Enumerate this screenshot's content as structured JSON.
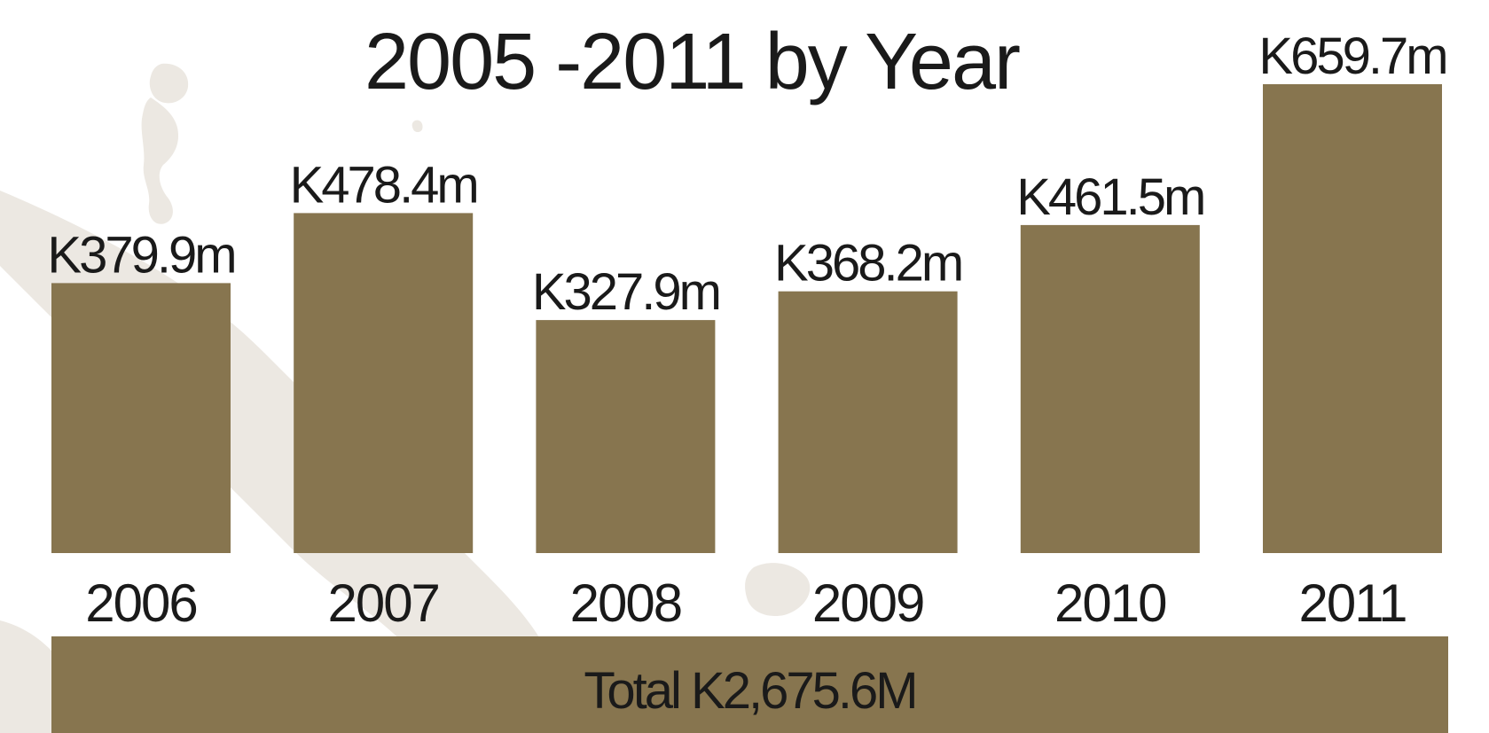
{
  "colors": {
    "bar": "#87754f",
    "text": "#1a1a1a",
    "map": "#ece8e2"
  },
  "chart_data": {
    "type": "bar",
    "title": "2005 -2011 by Year",
    "categories": [
      "2006",
      "2007",
      "2008",
      "2009",
      "2010",
      "2011"
    ],
    "values": [
      379.9,
      478.4,
      327.9,
      368.2,
      461.5,
      659.7
    ],
    "value_labels": [
      "K379.9m",
      "K478.4m",
      "K327.9m",
      "K368.2m",
      "K461.5m",
      "K659.7m"
    ],
    "ylim": [
      0,
      659.7
    ],
    "grid": false,
    "axes_visible": false
  },
  "total": {
    "label": "Total K2,675.6M"
  }
}
